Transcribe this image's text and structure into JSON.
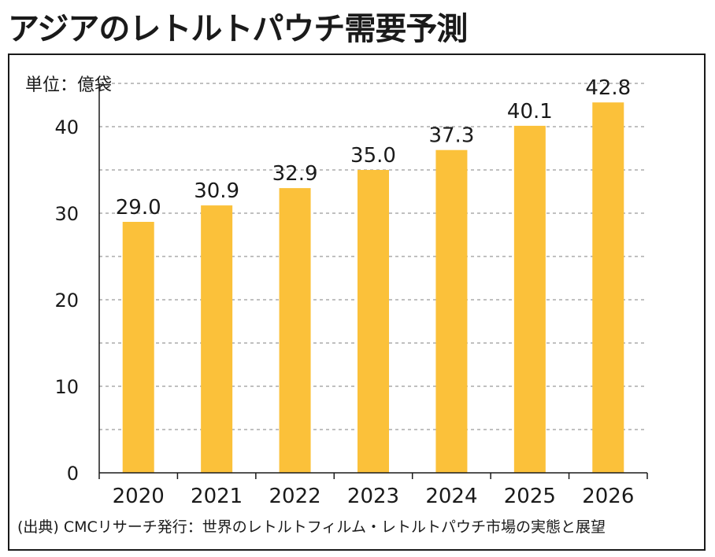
{
  "page_title": "アジアのレトルトパウチ需要予測",
  "source": "(出典) CMCリサーチ発行：世界のレトルトフィルム・レトルトパウチ市場の実態と展望",
  "colors": {
    "bar": "#FBC13A",
    "grid": "#9a9a9a",
    "axis": "#1a1a1a"
  },
  "chart_data": {
    "type": "bar",
    "title": "アジアのレトルトパウチ需要予測",
    "unit_label": "単位：億袋",
    "xlabel": "",
    "ylabel": "",
    "categories": [
      "2020",
      "2021",
      "2022",
      "2023",
      "2024",
      "2025",
      "2026"
    ],
    "values": [
      29.0,
      30.9,
      32.9,
      35.0,
      37.3,
      40.1,
      42.8
    ],
    "value_labels": [
      "29.0",
      "30.9",
      "32.9",
      "35.0",
      "37.3",
      "40.1",
      "42.8"
    ],
    "yticks": [
      0,
      10,
      20,
      30,
      40
    ],
    "ylim": [
      0,
      45
    ],
    "grid": "dashed horizontal every 5",
    "legend": "none"
  }
}
